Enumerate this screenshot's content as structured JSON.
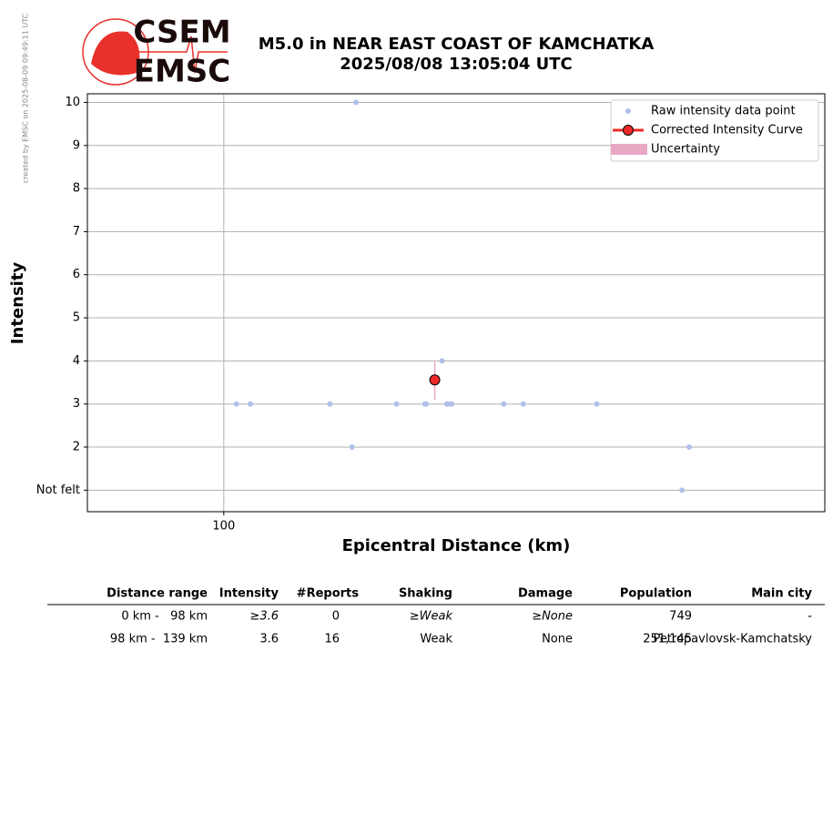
{
  "credit": "created by EMSC on 2025-08-09 09:49:11 UTC",
  "logo": {
    "top": "CSEM",
    "bottom": "EMSC"
  },
  "chart_data": {
    "type": "scatter",
    "title": "M5.0 in NEAR EAST COAST OF KAMCHATKA",
    "subtitle": "2025/08/08 13:05:04 UTC",
    "x_label": "Epicentral Distance (km)",
    "y_label": "Intensity",
    "log_x": true,
    "grid": true,
    "legend": "upper right",
    "xlim": [
      90.8,
      153
    ],
    "xticks": [
      100
    ],
    "ylim": [
      0.5,
      10.2
    ],
    "yticks": [
      {
        "value": 1,
        "label": "Not felt"
      },
      2,
      3,
      4,
      5,
      6,
      7,
      8,
      9,
      10
    ],
    "series": [
      {
        "name": "Raw intensity data point",
        "color": "#b0c0ea",
        "x": [
          100.9,
          101.9,
          107.8,
          109.5,
          109.8,
          113.0,
          115.3,
          115.4,
          116.7,
          117.1,
          117.3,
          117.5,
          121.9,
          123.6,
          130.2,
          138.3,
          139.0
        ],
        "values": [
          3,
          3,
          3,
          2,
          10,
          3,
          3,
          3,
          4,
          3,
          3,
          3,
          3,
          3,
          3,
          1,
          2
        ]
      },
      {
        "name": "Corrected Intensity Curve",
        "color": "#ee2a2a",
        "x": [
          116.1
        ],
        "values": [
          3.56
        ]
      }
    ],
    "uncertainty": {
      "name": "Uncertainty",
      "color": "#e8a8c4",
      "low": [
        3.1
      ],
      "high": [
        4.0
      ]
    }
  },
  "table": {
    "header": [
      "Distance range",
      "Intensity",
      "#Reports",
      "Shaking",
      "Damage",
      "Population",
      "Main city"
    ],
    "rows": [
      [
        "0 km -   98 km",
        "≥3.6",
        "0",
        "≥Weak",
        "≥None",
        "749",
        "-"
      ],
      [
        "98 km -  139 km",
        "3.6",
        "16",
        "Weak",
        "None",
        "251,145",
        "Petropavlovsk-Kamchatsky"
      ]
    ]
  }
}
